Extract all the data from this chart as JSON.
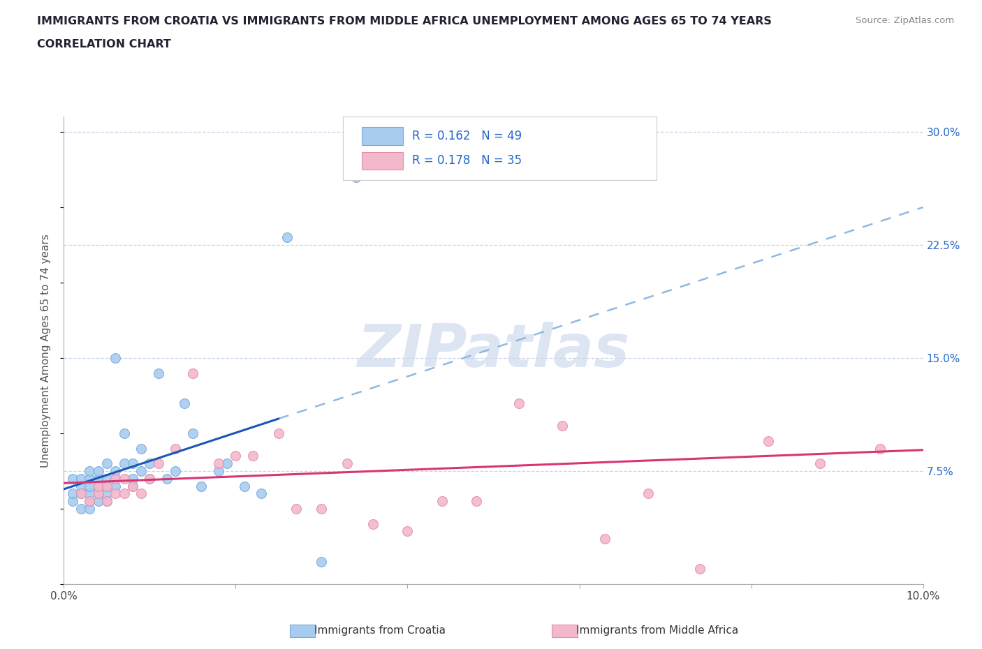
{
  "title_line1": "IMMIGRANTS FROM CROATIA VS IMMIGRANTS FROM MIDDLE AFRICA UNEMPLOYMENT AMONG AGES 65 TO 74 YEARS",
  "title_line2": "CORRELATION CHART",
  "source_text": "Source: ZipAtlas.com",
  "ylabel": "Unemployment Among Ages 65 to 74 years",
  "xlim": [
    0.0,
    0.1
  ],
  "ylim": [
    0.0,
    0.31
  ],
  "yticks_right": [
    0.0,
    0.075,
    0.15,
    0.225,
    0.3
  ],
  "ytick_labels_right": [
    "",
    "7.5%",
    "15.0%",
    "22.5%",
    "30.0%"
  ],
  "xticks": [
    0.0,
    0.02,
    0.04,
    0.06,
    0.08,
    0.1
  ],
  "xtick_labels": [
    "0.0%",
    "",
    "",
    "",
    "",
    "10.0%"
  ],
  "r_croatia": 0.162,
  "n_croatia": 49,
  "r_middle_africa": 0.178,
  "n_middle_africa": 35,
  "croatia_face_color": "#a8ccf0",
  "croatia_edge_color": "#7aaad8",
  "middle_africa_face_color": "#f4b8cc",
  "middle_africa_edge_color": "#e090aa",
  "croatia_line_color": "#1a56b8",
  "croatia_dash_color": "#90b8e0",
  "middle_africa_line_color": "#d83575",
  "watermark_text": "ZIPatlas",
  "watermark_color": "#ccd8ee",
  "croatia_x": [
    0.001,
    0.001,
    0.001,
    0.002,
    0.002,
    0.002,
    0.002,
    0.003,
    0.003,
    0.003,
    0.003,
    0.003,
    0.003,
    0.004,
    0.004,
    0.004,
    0.004,
    0.004,
    0.005,
    0.005,
    0.005,
    0.005,
    0.005,
    0.006,
    0.006,
    0.006,
    0.006,
    0.007,
    0.007,
    0.008,
    0.008,
    0.008,
    0.009,
    0.009,
    0.01,
    0.01,
    0.011,
    0.012,
    0.013,
    0.014,
    0.015,
    0.016,
    0.018,
    0.019,
    0.021,
    0.023,
    0.026,
    0.03,
    0.034
  ],
  "croatia_y": [
    0.055,
    0.06,
    0.07,
    0.05,
    0.06,
    0.065,
    0.07,
    0.05,
    0.055,
    0.06,
    0.065,
    0.07,
    0.075,
    0.055,
    0.06,
    0.065,
    0.07,
    0.075,
    0.055,
    0.06,
    0.065,
    0.07,
    0.08,
    0.065,
    0.07,
    0.075,
    0.15,
    0.08,
    0.1,
    0.065,
    0.07,
    0.08,
    0.075,
    0.09,
    0.07,
    0.08,
    0.14,
    0.07,
    0.075,
    0.12,
    0.1,
    0.065,
    0.075,
    0.08,
    0.065,
    0.06,
    0.23,
    0.015,
    0.27
  ],
  "middle_africa_x": [
    0.002,
    0.003,
    0.004,
    0.004,
    0.005,
    0.005,
    0.006,
    0.006,
    0.007,
    0.007,
    0.008,
    0.009,
    0.01,
    0.011,
    0.013,
    0.015,
    0.018,
    0.02,
    0.022,
    0.025,
    0.027,
    0.03,
    0.033,
    0.036,
    0.04,
    0.044,
    0.048,
    0.053,
    0.058,
    0.063,
    0.068,
    0.074,
    0.082,
    0.088,
    0.095
  ],
  "middle_africa_y": [
    0.06,
    0.055,
    0.06,
    0.065,
    0.055,
    0.065,
    0.06,
    0.07,
    0.06,
    0.07,
    0.065,
    0.06,
    0.07,
    0.08,
    0.09,
    0.14,
    0.08,
    0.085,
    0.085,
    0.1,
    0.05,
    0.05,
    0.08,
    0.04,
    0.035,
    0.055,
    0.055,
    0.12,
    0.105,
    0.03,
    0.06,
    0.01,
    0.095,
    0.08,
    0.09
  ]
}
